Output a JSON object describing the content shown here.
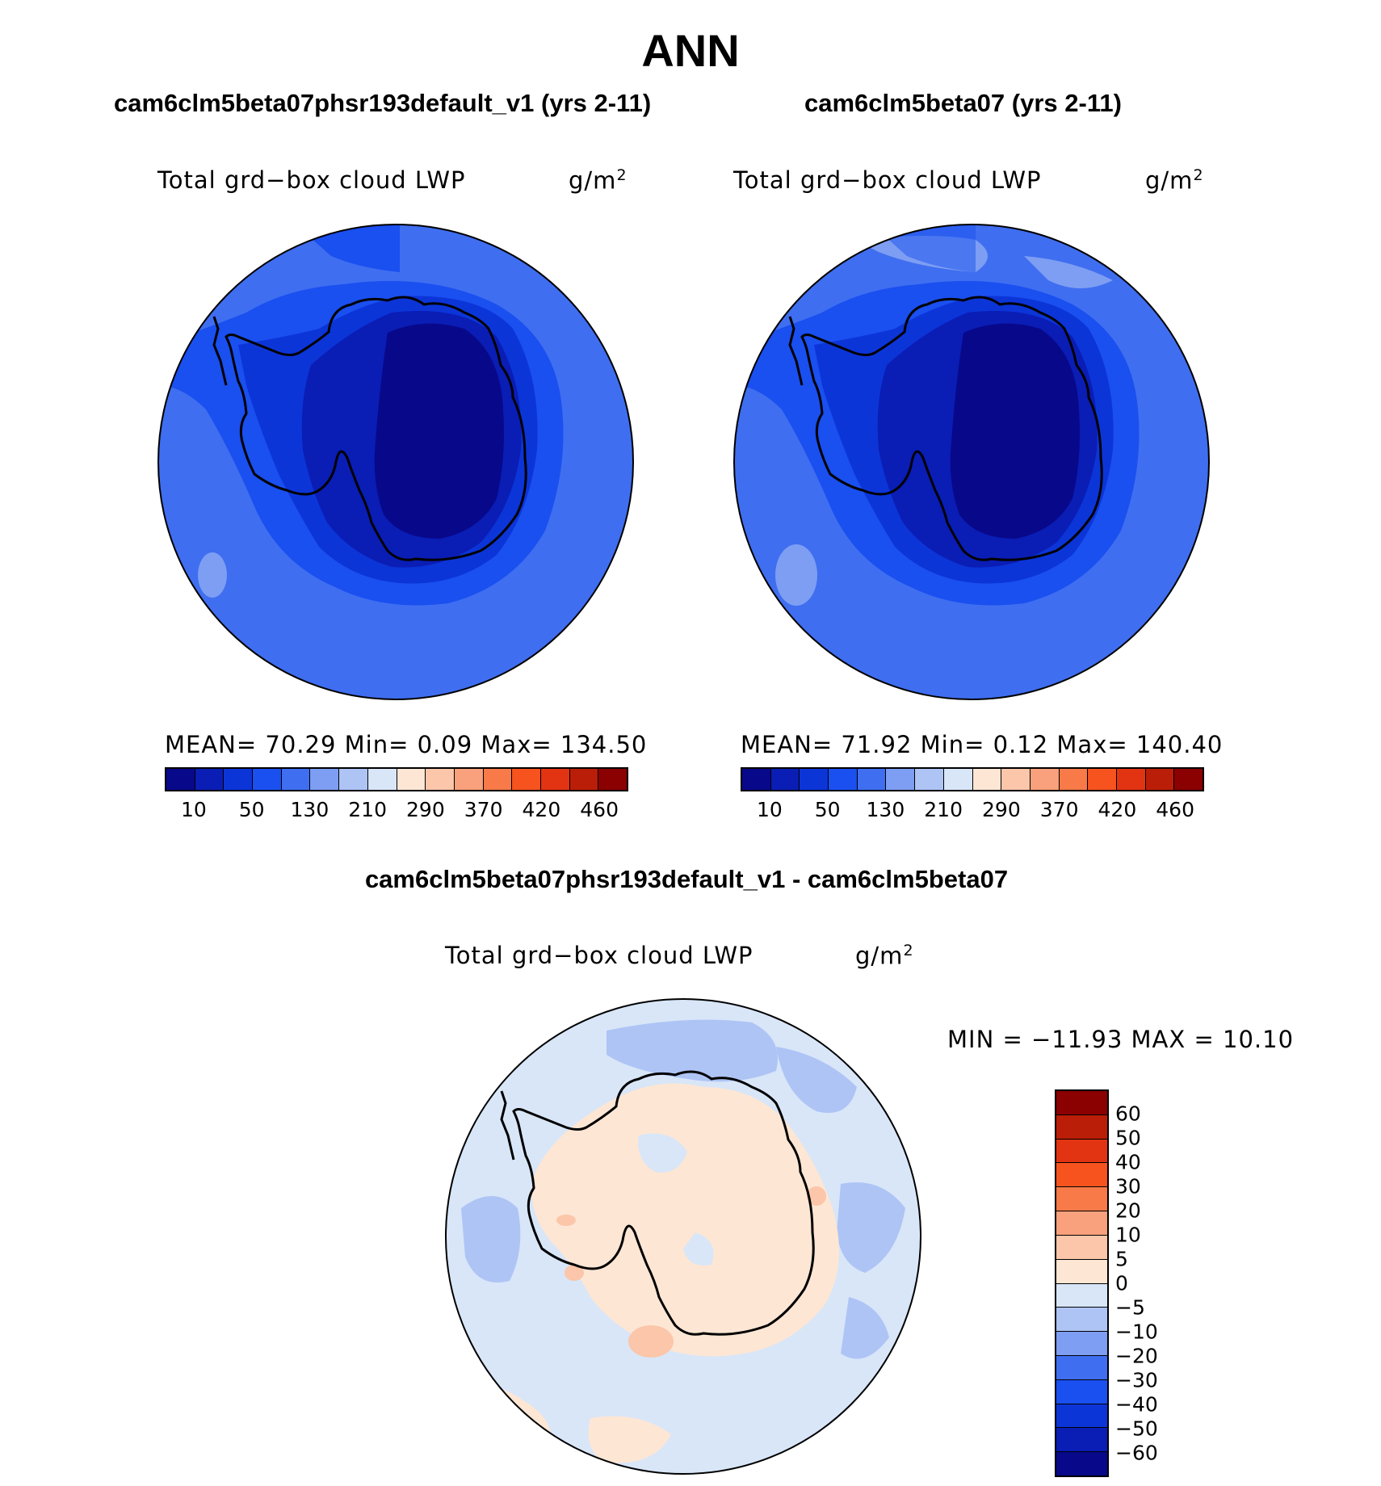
{
  "title": "ANN",
  "panels": [
    {
      "case_title": "cam6clm5beta07phsr193default_v1 (yrs 2-11)",
      "var_label": "Total grd−box cloud LWP",
      "units": "g/m",
      "units_sup": "2",
      "stats": "MEAN=   70.29   Min=     0.09   Max=  134.50"
    },
    {
      "case_title": "cam6clm5beta07 (yrs 2-11)",
      "var_label": "Total grd−box cloud LWP",
      "units": "g/m",
      "units_sup": "2",
      "stats": "MEAN=   71.92   Min=     0.12   Max=  140.40"
    }
  ],
  "colorbar": {
    "colors": [
      "#08088a",
      "#0a1db5",
      "#0c35d8",
      "#1a4ff0",
      "#3f6ef0",
      "#7d9ef2",
      "#aec4f5",
      "#d8e6f8",
      "#fde6d4",
      "#fbc6a9",
      "#f9a07c",
      "#f77a48",
      "#f6531f",
      "#e23412",
      "#bb1e08",
      "#8b0000"
    ],
    "labels": [
      "10",
      "50",
      "130",
      "210",
      "290",
      "370",
      "420",
      "460"
    ]
  },
  "diff": {
    "title": "cam6clm5beta07phsr193default_v1 - cam6clm5beta07",
    "var_label": "Total grd−box cloud LWP",
    "units": "g/m",
    "units_sup": "2",
    "stats": "MIN = −11.93 MAX =   10.10",
    "colorbar": {
      "colors": [
        "#8b0000",
        "#bb1e08",
        "#e23412",
        "#f6531f",
        "#f77a48",
        "#f9a07c",
        "#fbc6a9",
        "#fde6d4",
        "#d8e6f8",
        "#aec4f5",
        "#7d9ef2",
        "#3f6ef0",
        "#1a4ff0",
        "#0c35d8",
        "#0a1db5",
        "#08088a"
      ],
      "labels": [
        "60",
        "50",
        "40",
        "30",
        "20",
        "10",
        "5",
        "0",
        "−5",
        "−10",
        "−20",
        "−30",
        "−40",
        "−50",
        "−60"
      ]
    }
  }
}
